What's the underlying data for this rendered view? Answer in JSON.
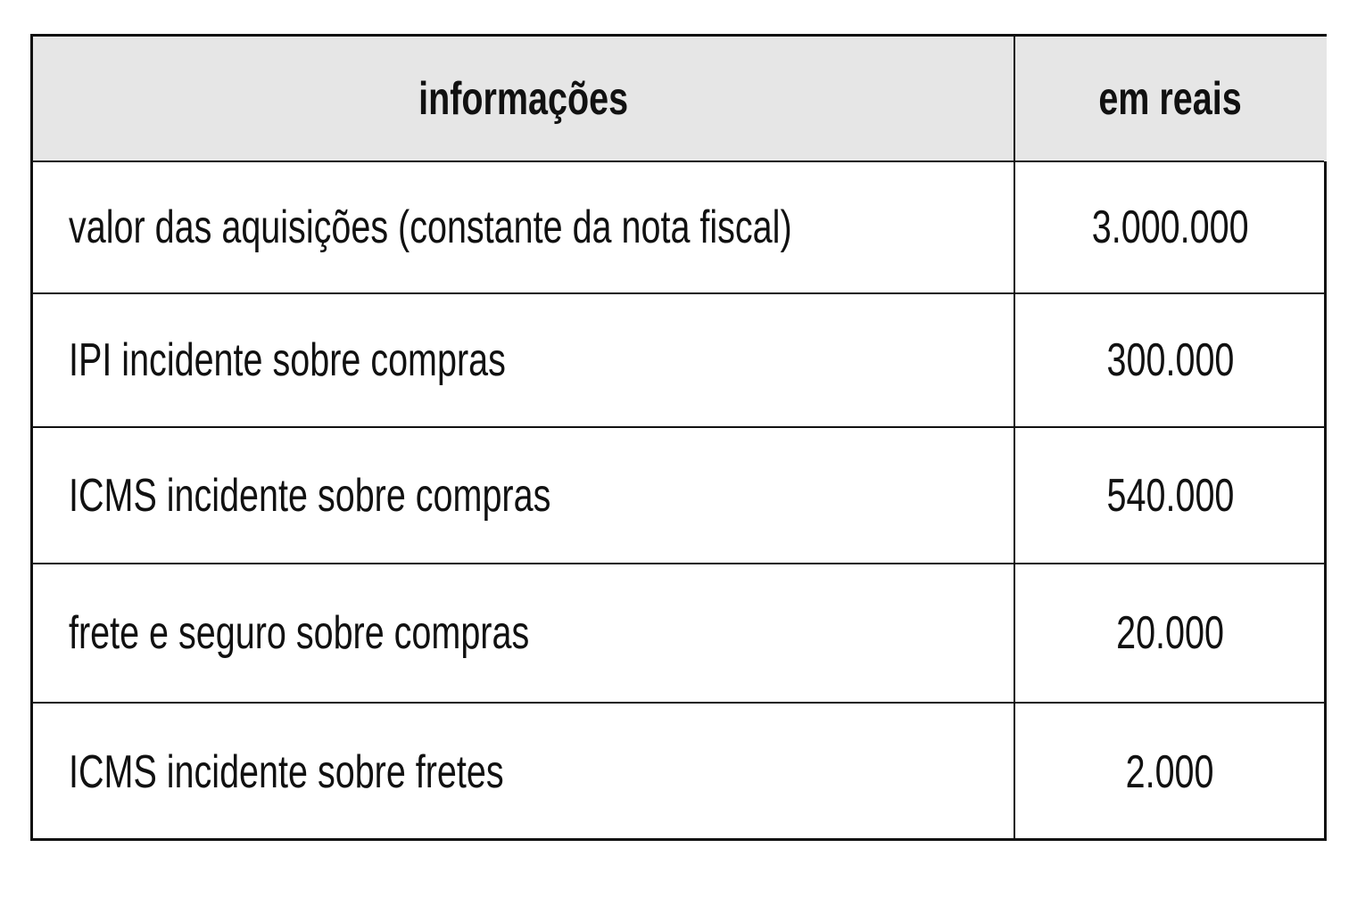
{
  "table": {
    "header": [
      "informações",
      "em reais"
    ],
    "rows": [
      [
        "valor das aquisições (constante da nota fiscal)",
        "3.000.000"
      ],
      [
        "IPI incidente sobre compras",
        "300.000"
      ],
      [
        "ICMS incidente sobre compras",
        "540.000"
      ],
      [
        "frete e seguro sobre compras",
        "20.000"
      ],
      [
        "ICMS incidente sobre fretes",
        "2.000"
      ]
    ]
  }
}
